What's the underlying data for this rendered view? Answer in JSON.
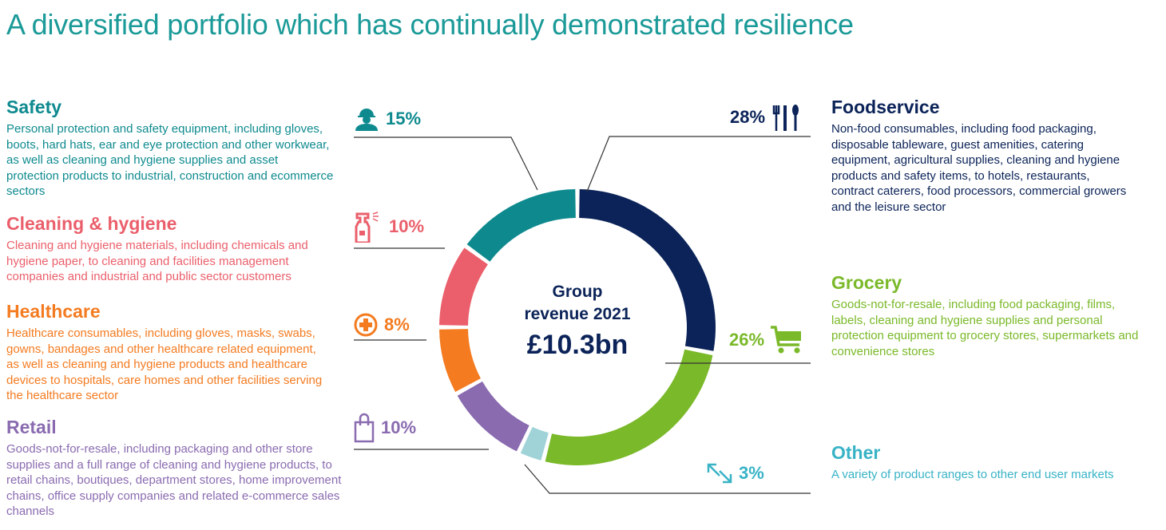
{
  "title": "A diversified portfolio which has continually demonstrated resilience",
  "center": {
    "line1": "Group",
    "line2": "revenue 2021",
    "value": "£10.3bn"
  },
  "segments": {
    "safety": {
      "name": "Safety",
      "pct": "15%",
      "desc": "Personal protection and safety equipment, including gloves, boots, hard hats, ear and eye protection and other workwear, as well as cleaning and hygiene supplies and asset protection products to industrial, construction and ecommerce sectors",
      "icon": "worker-icon"
    },
    "cleaning": {
      "name": "Cleaning & hygiene",
      "pct": "10%",
      "desc": "Cleaning and hygiene materials, including chemicals and hygiene paper, to cleaning and facilities management companies and industrial and public sector customers",
      "icon": "spray-bottle-icon"
    },
    "healthcare": {
      "name": "Healthcare",
      "pct": "8%",
      "desc": "Healthcare consumables, including gloves, masks, swabs, gowns, bandages and other healthcare related equipment, as well as cleaning and hygiene products and healthcare devices to hospitals, care homes and other facilities serving the healthcare sector",
      "icon": "medical-cross-icon"
    },
    "retail": {
      "name": "Retail",
      "pct": "10%",
      "desc": "Goods-not-for-resale, including packaging and other store supplies and a full range of cleaning and hygiene products, to retail chains, boutiques, department stores, home improvement chains, office supply companies and related e-commerce sales channels",
      "icon": "shopping-bag-icon"
    },
    "foodservice": {
      "name": "Foodservice",
      "pct": "28%",
      "desc": "Non-food consumables, including food packaging, disposable tableware, guest amenities, catering equipment, agricultural supplies, cleaning and hygiene products and safety items, to hotels, restaurants, contract caterers, food processors, commercial growers and the leisure sector",
      "icon": "cutlery-icon"
    },
    "grocery": {
      "name": "Grocery",
      "pct": "26%",
      "desc": "Goods-not-for-resale, including food packaging, films, labels, cleaning and hygiene supplies and personal protection equipment to grocery stores, supermarkets and convenience stores",
      "icon": "shopping-cart-icon"
    },
    "other": {
      "name": "Other",
      "pct": "3%",
      "desc": "A variety of product ranges to other end user markets",
      "icon": "arrows-icon"
    }
  },
  "chart_data": {
    "type": "pie",
    "title": "Group revenue 2021 £10.3bn",
    "categories": [
      "Foodservice",
      "Grocery",
      "Other",
      "Retail",
      "Healthcare",
      "Cleaning & hygiene",
      "Safety"
    ],
    "values": [
      28,
      26,
      3,
      10,
      8,
      10,
      15
    ],
    "colors": [
      "#0b2358",
      "#7ab929",
      "#9fd3d8",
      "#8a6bb0",
      "#f47b20",
      "#ea5f6b",
      "#0e8a8f"
    ],
    "unit": "%"
  },
  "colors": {
    "title": "#1a9a98",
    "safety": "#0e8a8f",
    "cleaning": "#ea5f6b",
    "healthcare": "#f47b20",
    "retail": "#8a6bb0",
    "foodservice": "#0b2358",
    "grocery": "#7ab929",
    "other": "#38b3c6"
  }
}
